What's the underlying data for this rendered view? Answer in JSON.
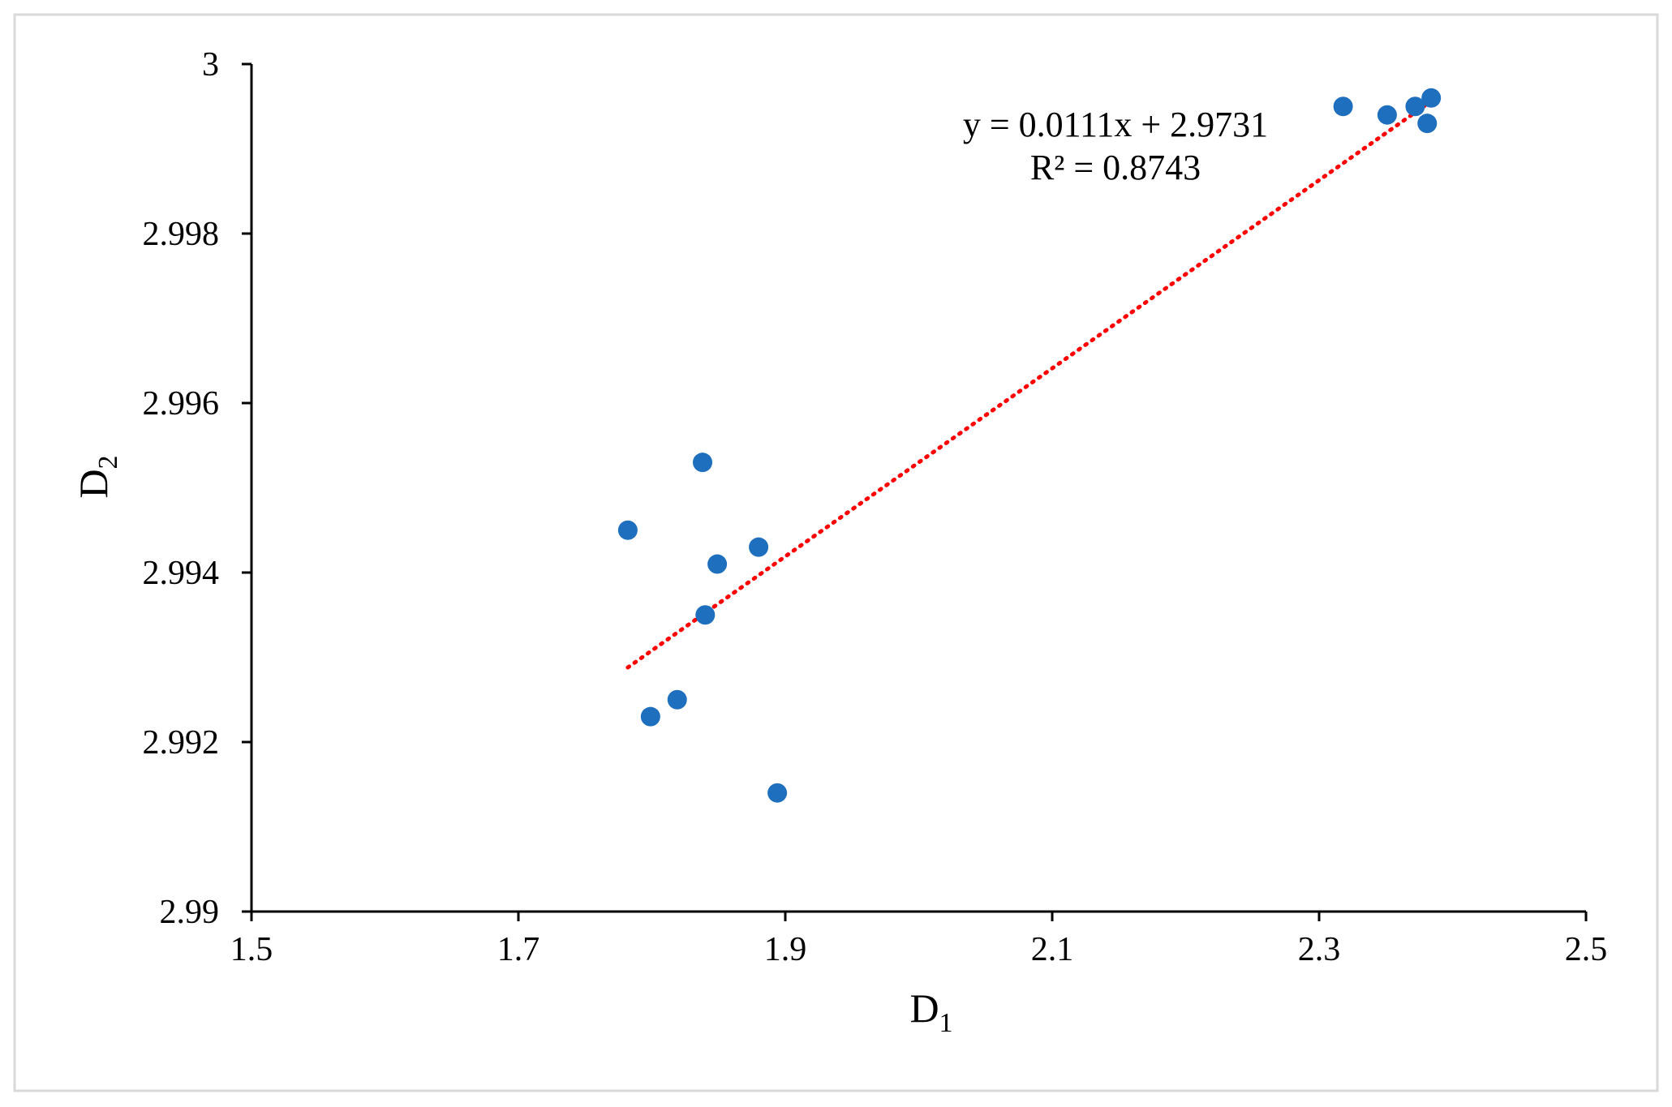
{
  "chart_data": {
    "type": "scatter",
    "title": "",
    "xlabel": "D1",
    "xlabel_main": "D",
    "xlabel_sub": "1",
    "ylabel": "D2",
    "ylabel_main": "D",
    "ylabel_sub": "2",
    "xlim": [
      1.5,
      2.5
    ],
    "ylim": [
      2.99,
      3.0
    ],
    "x_ticks": [
      1.5,
      1.7,
      1.9,
      2.1,
      2.3,
      2.5
    ],
    "x_tick_labels": [
      "1.5",
      "1.7",
      "1.9",
      "2.1",
      "2.3",
      "2.5"
    ],
    "y_ticks": [
      2.99,
      2.992,
      2.994,
      2.996,
      2.998,
      3.0
    ],
    "y_tick_labels": [
      "2.99",
      "2.992",
      "2.994",
      "2.996",
      "2.998",
      "3"
    ],
    "grid": false,
    "legend": "none",
    "series": [
      {
        "color": "#1f6fbf",
        "points": [
          {
            "x": 1.782,
            "y": 2.9945
          },
          {
            "x": 1.799,
            "y": 2.9923
          },
          {
            "x": 1.819,
            "y": 2.9925
          },
          {
            "x": 1.838,
            "y": 2.9953
          },
          {
            "x": 1.84,
            "y": 2.9935
          },
          {
            "x": 1.849,
            "y": 2.9941
          },
          {
            "x": 1.88,
            "y": 2.9943
          },
          {
            "x": 1.894,
            "y": 2.9914
          },
          {
            "x": 2.318,
            "y": 2.9995
          },
          {
            "x": 2.351,
            "y": 2.9994
          },
          {
            "x": 2.372,
            "y": 2.9995
          },
          {
            "x": 2.381,
            "y": 2.9993
          },
          {
            "x": 2.384,
            "y": 2.9996
          }
        ]
      }
    ],
    "trendline": {
      "color": "#ff0000",
      "style": "dotted",
      "slope": 0.0111,
      "intercept": 2.9731,
      "x_range": [
        1.782,
        2.384
      ],
      "equation_text": "y = 0.0111x + 2.9731",
      "r2_text": "R² = 0.8743"
    }
  }
}
